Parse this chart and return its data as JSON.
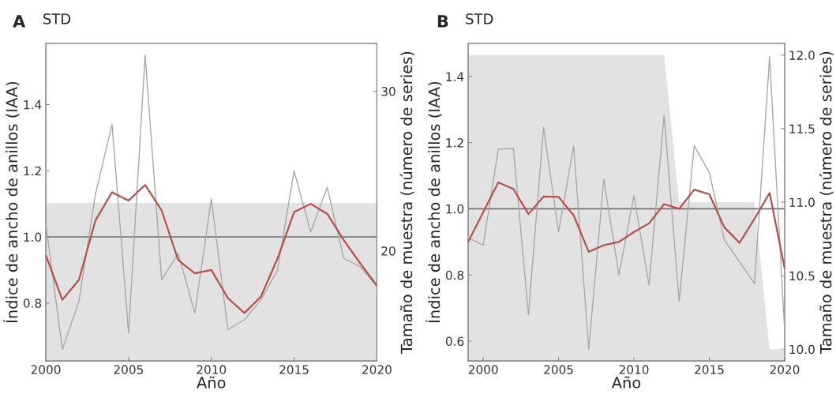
{
  "chart_data": [
    {
      "type": "line",
      "title": "STD",
      "annotations": [
        "A"
      ],
      "xlabel": "Año",
      "ylabel": "Índice de ancho de anillos (IAA)",
      "y2label": "Tamaño de muestra (número de series)",
      "x": [
        2000,
        2001,
        2002,
        2003,
        2004,
        2005,
        2006,
        2007,
        2008,
        2009,
        2010,
        2011,
        2012,
        2013,
        2014,
        2015,
        2016,
        2017,
        2018,
        2019,
        2020
      ],
      "xlim": [
        2000,
        2020
      ],
      "xticks": [
        2000,
        2005,
        2010,
        2015,
        2020
      ],
      "ylim": [
        0.625,
        1.585
      ],
      "yticks": [
        0.8,
        {
          "value": 1,
          "label": "1.0"
        },
        1.2,
        1.4
      ],
      "y2lim": [
        13.1,
        33
      ],
      "y2ticks": [
        20,
        30
      ],
      "grid": false,
      "ref_lines": [
        {
          "axis": "y",
          "value": 1.0,
          "color": "#707070"
        }
      ],
      "series": [
        {
          "type": "area",
          "axis": "y2",
          "color": "#e1e2e1",
          "values": [
            23,
            23,
            23,
            23,
            23,
            23,
            23,
            23,
            23,
            23,
            23,
            23,
            23,
            23,
            23,
            23,
            23,
            23,
            23,
            23,
            23
          ]
        },
        {
          "color": "#a8a8a8",
          "values": [
            1.04,
            0.66,
            0.805,
            1.13,
            1.34,
            0.71,
            1.55,
            0.87,
            0.95,
            0.77,
            1.115,
            0.72,
            0.75,
            0.81,
            0.9,
            1.2,
            1.015,
            1.15,
            0.935,
            0.91,
            0.85
          ]
        },
        {
          "color": "#b5504a",
          "values": [
            0.945,
            0.81,
            0.87,
            1.05,
            1.135,
            1.11,
            1.157,
            1.08,
            0.93,
            0.89,
            0.9,
            0.815,
            0.77,
            0.82,
            0.935,
            1.075,
            1.1,
            1.07,
            0.99,
            0.92,
            0.853
          ]
        }
      ]
    },
    {
      "type": "line",
      "title": "STD",
      "annotations": [
        "B"
      ],
      "xlabel": "Año",
      "ylabel": "Índice de ancho de anillos (IAA)",
      "y2label": "Tamaño de muestra (número de series)",
      "x": [
        1999,
        2000,
        2001,
        2002,
        2003,
        2004,
        2005,
        2006,
        2007,
        2008,
        2009,
        2010,
        2011,
        2012,
        2013,
        2014,
        2015,
        2016,
        2017,
        2018,
        2019,
        2020
      ],
      "xlim": [
        1999,
        2020
      ],
      "xticks": [
        2000,
        2005,
        2010,
        2015,
        2020
      ],
      "ylim": [
        0.54,
        1.5
      ],
      "yticks": [
        0.6,
        0.8,
        {
          "value": 1,
          "label": "1.0"
        },
        1.2,
        1.4
      ],
      "y2lim": [
        9.92,
        12.08
      ],
      "y2ticks": [
        {
          "value": 10,
          "label": "10.0"
        },
        10.5,
        {
          "value": 11,
          "label": "11.0"
        },
        11.5,
        {
          "value": 12,
          "label": "12.0"
        }
      ],
      "grid": false,
      "ref_lines": [
        {
          "axis": "y",
          "value": 1.0,
          "color": "#707070"
        }
      ],
      "series": [
        {
          "type": "area",
          "axis": "y2",
          "color": "#e1e2e1",
          "values": [
            12,
            12,
            12,
            12,
            12,
            12,
            12,
            12,
            12,
            12,
            12,
            12,
            12,
            12,
            11,
            11,
            11,
            11,
            11,
            11,
            10,
            10
          ]
        },
        {
          "color": "#a8a8a8",
          "values": [
            0.913,
            0.89,
            1.18,
            1.183,
            0.68,
            1.246,
            0.93,
            1.19,
            0.575,
            1.09,
            0.8,
            1.04,
            0.77,
            1.283,
            0.72,
            1.19,
            1.11,
            0.905,
            0.84,
            0.774,
            1.46,
            0.63
          ]
        },
        {
          "color": "#b5504a",
          "values": [
            0.9,
            0.99,
            1.08,
            1.06,
            0.984,
            1.037,
            1.036,
            0.98,
            0.87,
            0.89,
            0.9,
            0.93,
            0.956,
            1.014,
            1.0,
            1.058,
            1.044,
            0.944,
            0.897,
            0.97,
            1.048,
            0.82
          ]
        }
      ]
    }
  ]
}
